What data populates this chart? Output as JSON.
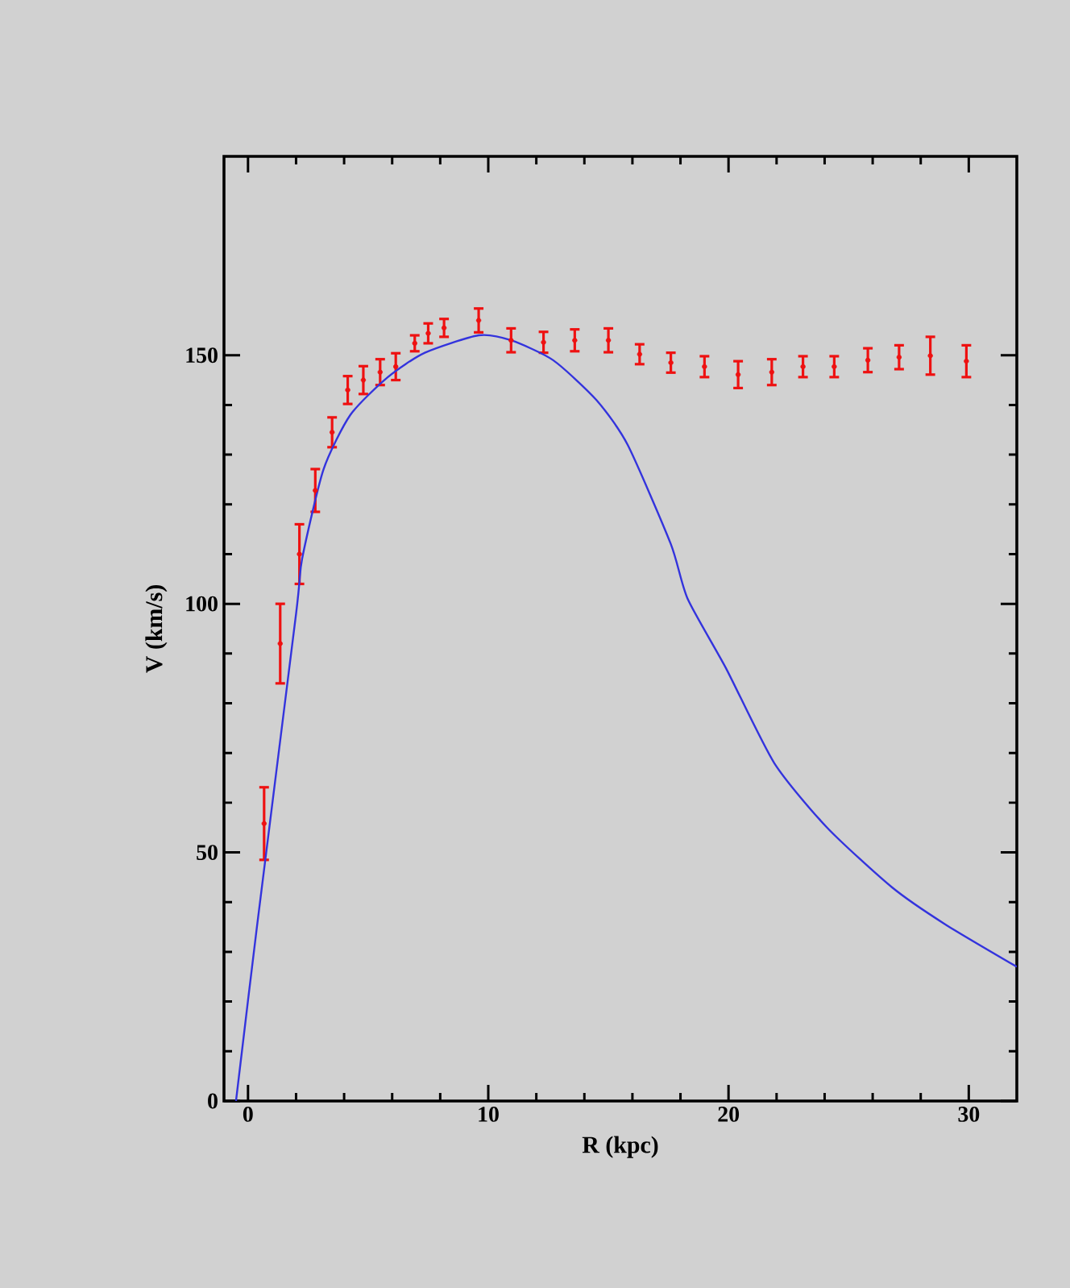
{
  "chart_data": {
    "type": "scatter",
    "xlabel": "R (kpc)",
    "ylabel": "V (km/s)",
    "xlim": [
      -1,
      32
    ],
    "ylim": [
      0,
      190
    ],
    "xticks": [
      0,
      10,
      20,
      30
    ],
    "yticks": [
      0,
      50,
      100,
      150
    ],
    "series": [
      {
        "color": "#ee1111",
        "marker": "circle",
        "x": [
          0.67,
          1.34,
          2.14,
          2.8,
          3.5,
          4.15,
          4.8,
          5.5,
          6.15,
          6.94,
          7.5,
          8.16,
          9.6,
          10.95,
          12.3,
          13.6,
          15.0,
          16.3,
          17.6,
          19.0,
          20.4,
          21.8,
          23.1,
          24.4,
          25.8,
          27.1,
          28.4,
          29.9
        ],
        "values": [
          55.8,
          92,
          110,
          122.8,
          134.5,
          143,
          145,
          146.6,
          147.7,
          152.4,
          154.4,
          155.5,
          157,
          153,
          152.6,
          153,
          153,
          150.2,
          148.5,
          147.7,
          146.1,
          146.6,
          147.7,
          147.7,
          149,
          149.6,
          149.9,
          148.8
        ],
        "errors": [
          7.3,
          8,
          6,
          4.3,
          3,
          2.8,
          2.8,
          2.6,
          2.7,
          1.6,
          2,
          1.8,
          2.4,
          2.4,
          2.1,
          2.2,
          2.4,
          2,
          2,
          2.1,
          2.7,
          2.6,
          2.1,
          2.1,
          2.4,
          2.4,
          3.8,
          3.2
        ]
      },
      {
        "type": "line",
        "color": "#3333dd",
        "marker": "none",
        "x": [
          -0.5,
          0.37,
          2.0,
          2.25,
          3.14,
          4.26,
          5.82,
          7.36,
          9.6,
          10.95,
          12.7,
          14.5,
          15.8,
          17.6,
          18.3,
          19.9,
          21.9,
          24.1,
          26.8,
          29.0,
          32
        ],
        "values": [
          0,
          35,
          98,
          109,
          127,
          138,
          145.6,
          150.5,
          154,
          153,
          149,
          141,
          132,
          112,
          101,
          87,
          68,
          55,
          43,
          35.6,
          27
        ]
      }
    ]
  }
}
